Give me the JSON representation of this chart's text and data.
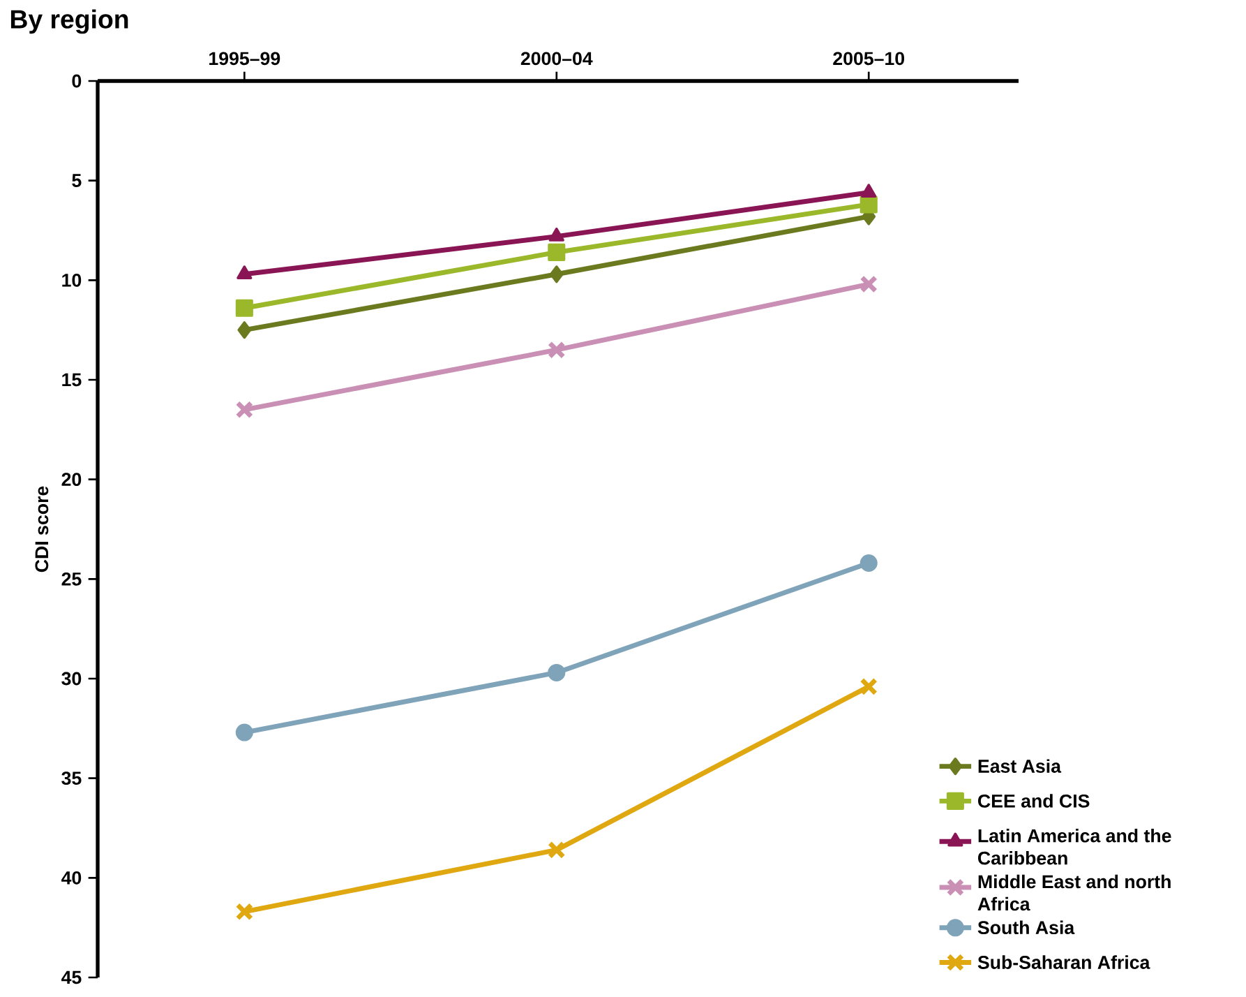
{
  "chart_data": {
    "type": "line",
    "title": "By region",
    "ylabel": "CDI score",
    "categories": [
      "1995–99",
      "2000–04",
      "2005–10"
    ],
    "ylim": [
      45,
      0
    ],
    "yticks": [
      0,
      5,
      10,
      15,
      20,
      25,
      30,
      35,
      40,
      45
    ],
    "grid": false,
    "legend": "bottom right",
    "line_style": "solid",
    "series": [
      {
        "name": "East Asia",
        "color": "#6b7a1e",
        "marker": "diamond",
        "values": [
          12.5,
          9.7,
          6.8
        ]
      },
      {
        "name": "CEE and CIS",
        "color": "#9ab82a",
        "marker": "square",
        "values": [
          11.4,
          8.6,
          6.2
        ]
      },
      {
        "name": "Latin America and the Caribbean",
        "color": "#8a1555",
        "marker": "triangle",
        "values": [
          9.7,
          7.8,
          5.6
        ]
      },
      {
        "name": "Middle East and north Africa",
        "color": "#c98fb4",
        "marker": "cross",
        "values": [
          16.5,
          13.5,
          10.2
        ]
      },
      {
        "name": "South Asia",
        "color": "#7fa3b8",
        "marker": "circle",
        "values": [
          32.7,
          29.7,
          24.2
        ]
      },
      {
        "name": "Sub-Saharan Africa",
        "color": "#e0a810",
        "marker": "cross",
        "values": [
          41.7,
          38.6,
          30.4
        ]
      }
    ]
  }
}
